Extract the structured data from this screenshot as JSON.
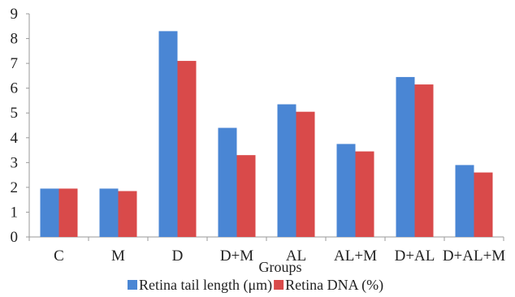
{
  "chart_data": {
    "type": "bar",
    "title": "",
    "xlabel": "Groups",
    "ylabel": "",
    "categories": [
      "C",
      "M",
      "D",
      "D+M",
      "AL",
      "AL+M",
      "D+AL",
      "D+AL+M"
    ],
    "series": [
      {
        "name": "Retina tail length (μm)",
        "color": "#4a86d4",
        "values": [
          1.95,
          1.95,
          8.3,
          4.4,
          5.35,
          3.75,
          6.45,
          2.9
        ]
      },
      {
        "name": "Retina DNA (%)",
        "color": "#d94a4a",
        "values": [
          1.95,
          1.85,
          7.1,
          3.3,
          5.05,
          3.45,
          6.15,
          2.6
        ]
      }
    ],
    "ylim": [
      0,
      9
    ],
    "yticks": [
      0,
      1,
      2,
      3,
      4,
      5,
      6,
      7,
      8,
      9
    ],
    "grid": false,
    "legend": "bottom"
  }
}
